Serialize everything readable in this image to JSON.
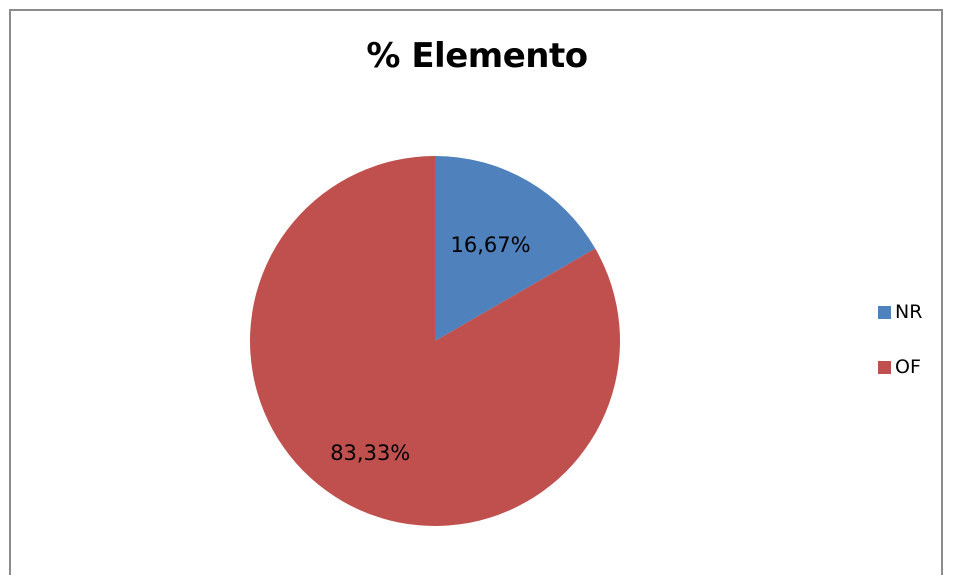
{
  "chart_data": {
    "type": "pie",
    "title": "% Elemento",
    "categories": [
      "NR",
      "OF"
    ],
    "values": [
      16.67,
      83.33
    ],
    "data_labels": [
      "16,67%",
      "83,33%"
    ],
    "colors": [
      "#4f81bd",
      "#c0504d"
    ],
    "legend": {
      "placement": "right",
      "entries": [
        "NR",
        "OF"
      ]
    }
  }
}
